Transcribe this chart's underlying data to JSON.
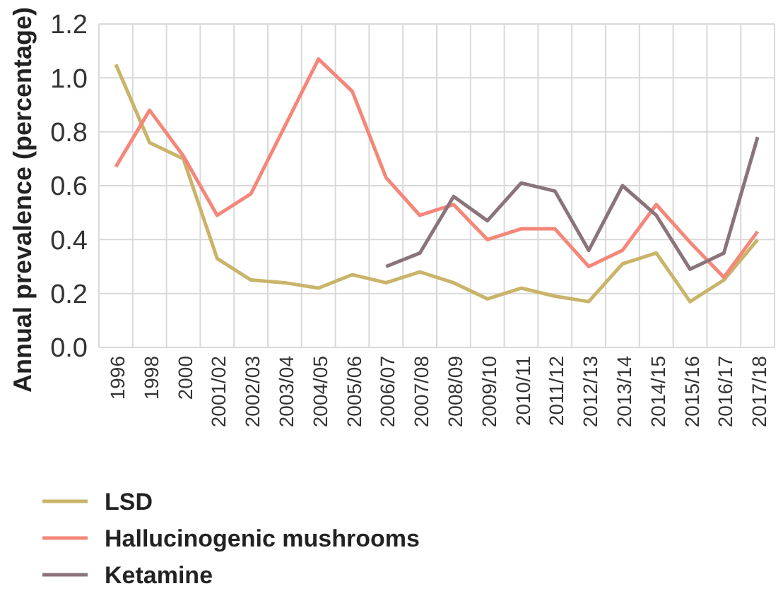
{
  "chart_data": {
    "type": "line",
    "ylabel": "Annual prevalence (percentage)",
    "categories": [
      "1996",
      "1998",
      "2000",
      "2001/02",
      "2002/03",
      "2003/04",
      "2004/05",
      "2005/06",
      "2006/07",
      "2007/08",
      "2008/09",
      "2009/10",
      "2010/11",
      "2011/12",
      "2012/13",
      "2013/14",
      "2014/15",
      "2015/16",
      "2016/17",
      "2017/18"
    ],
    "series": [
      {
        "name": "LSD",
        "color": "#c9b46a",
        "values": [
          1.05,
          0.76,
          0.7,
          0.33,
          0.25,
          0.24,
          0.22,
          0.27,
          0.24,
          0.28,
          0.24,
          0.18,
          0.22,
          0.19,
          0.17,
          0.31,
          0.35,
          0.17,
          0.25,
          0.4
        ]
      },
      {
        "name": "Hallucinogenic mushrooms",
        "color": "#f4877a",
        "values": [
          0.67,
          0.88,
          0.71,
          0.49,
          0.57,
          0.82,
          1.07,
          0.95,
          0.63,
          0.49,
          0.53,
          0.4,
          0.44,
          0.44,
          0.3,
          0.36,
          0.53,
          0.39,
          0.26,
          0.43
        ]
      },
      {
        "name": "Ketamine",
        "color": "#8a747a",
        "values": [
          null,
          null,
          null,
          null,
          null,
          null,
          null,
          null,
          0.3,
          0.35,
          0.56,
          0.47,
          0.61,
          0.58,
          0.36,
          0.6,
          0.49,
          0.29,
          0.35,
          0.78
        ]
      }
    ],
    "ylim": [
      0,
      1.2
    ],
    "yticks": [
      {
        "value": 0,
        "label": "0.0"
      },
      {
        "value": 0.2,
        "label": "0.2"
      },
      {
        "value": 0.4,
        "label": "0.4"
      },
      {
        "value": 0.6,
        "label": "0.6"
      },
      {
        "value": 0.8,
        "label": "0.8"
      },
      {
        "value": 1,
        "label": "1.0"
      },
      {
        "value": 1.2,
        "label": "1.2"
      }
    ],
    "grid": true,
    "legend": "bottom",
    "line_style": "solid"
  }
}
